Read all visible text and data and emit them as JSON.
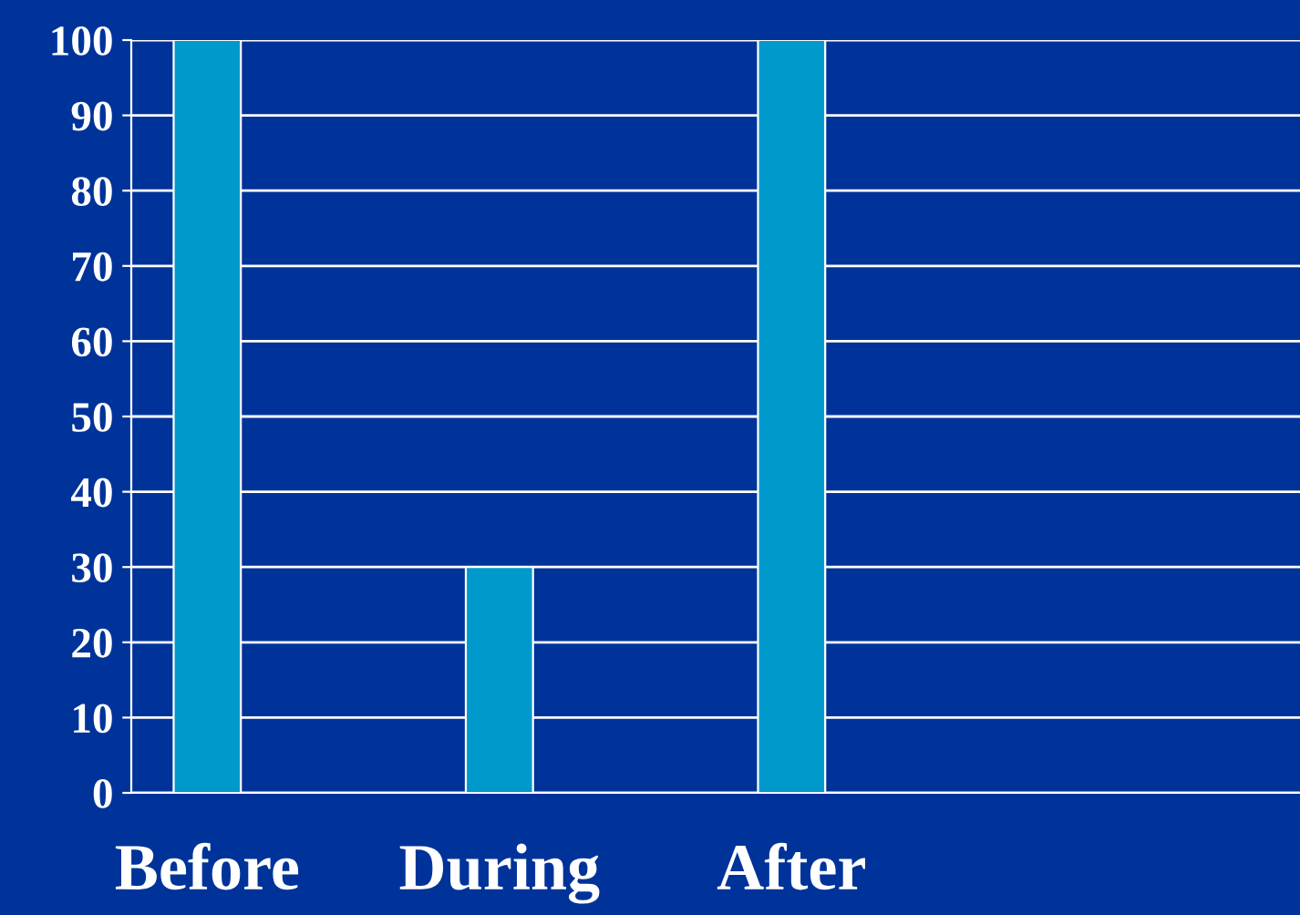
{
  "chart_data": {
    "type": "bar",
    "categories": [
      "Before",
      "During",
      "After",
      null
    ],
    "values": [
      100,
      30,
      100,
      null
    ],
    "color": "#0099cc",
    "ylim": [
      0,
      100
    ],
    "yticks": [
      0,
      10,
      20,
      30,
      40,
      50,
      60,
      70,
      80,
      90,
      100
    ],
    "grid": "y",
    "legend": false
  }
}
